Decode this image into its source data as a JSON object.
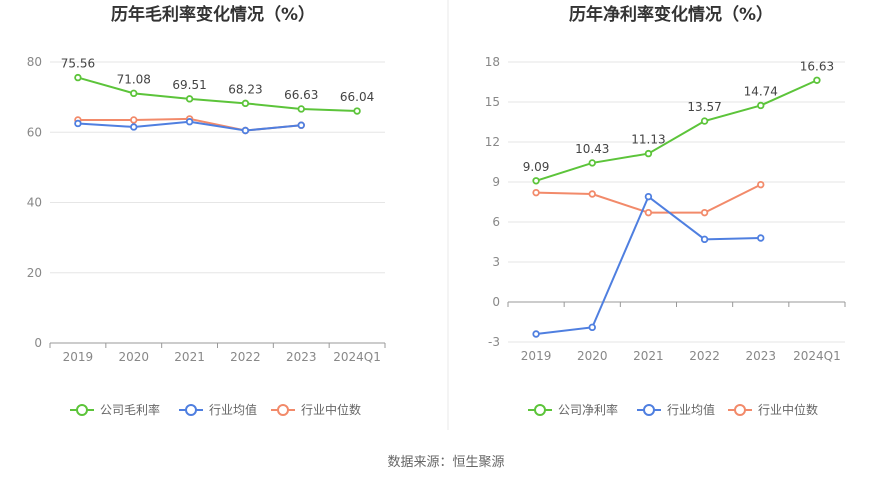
{
  "colors": {
    "company": "#5cc43a",
    "industry_avg": "#4f7fe0",
    "industry_median": "#f28a6a",
    "grid": "#e6e6e6",
    "axis": "#999999",
    "divider": "#e8e8e8"
  },
  "source_text": "数据来源：恒生聚源",
  "chart_data": [
    {
      "type": "line",
      "title": "历年毛利率变化情况（%）",
      "categories": [
        "2019",
        "2020",
        "2021",
        "2022",
        "2023",
        "2024Q1"
      ],
      "ylim": [
        0,
        80
      ],
      "yticks": [
        "0",
        "20",
        "40",
        "60",
        "80"
      ],
      "grid": true,
      "legend_position": "bottom",
      "series": [
        {
          "key": "company",
          "name": "公司毛利率",
          "values": [
            75.56,
            71.08,
            69.51,
            68.23,
            66.63,
            66.04
          ],
          "labels": [
            "75.56",
            "71.08",
            "69.51",
            "68.23",
            "66.63",
            "66.04"
          ]
        },
        {
          "key": "industry_avg",
          "name": "行业均值",
          "values": [
            62.5,
            61.5,
            63.0,
            60.5,
            62.0,
            null
          ],
          "labels": []
        },
        {
          "key": "industry_median",
          "name": "行业中位数",
          "values": [
            63.5,
            63.5,
            63.8,
            60.5,
            62.0,
            null
          ],
          "labels": []
        }
      ]
    },
    {
      "type": "line",
      "title": "历年净利率变化情况（%）",
      "categories": [
        "2019",
        "2020",
        "2021",
        "2022",
        "2023",
        "2024Q1"
      ],
      "ylim": [
        -3,
        18
      ],
      "yticks": [
        "-3",
        "0",
        "3",
        "6",
        "9",
        "12",
        "15",
        "18"
      ],
      "grid": true,
      "legend_position": "bottom",
      "series": [
        {
          "key": "company",
          "name": "公司净利率",
          "values": [
            9.09,
            10.43,
            11.13,
            13.57,
            14.74,
            16.63
          ],
          "labels": [
            "9.09",
            "10.43",
            "11.13",
            "13.57",
            "14.74",
            "16.63"
          ]
        },
        {
          "key": "industry_avg",
          "name": "行业均值",
          "values": [
            -2.4,
            -1.9,
            7.9,
            4.7,
            4.8,
            null
          ],
          "labels": []
        },
        {
          "key": "industry_median",
          "name": "行业中位数",
          "values": [
            8.2,
            8.1,
            6.7,
            6.7,
            8.8,
            null
          ],
          "labels": []
        }
      ]
    }
  ]
}
